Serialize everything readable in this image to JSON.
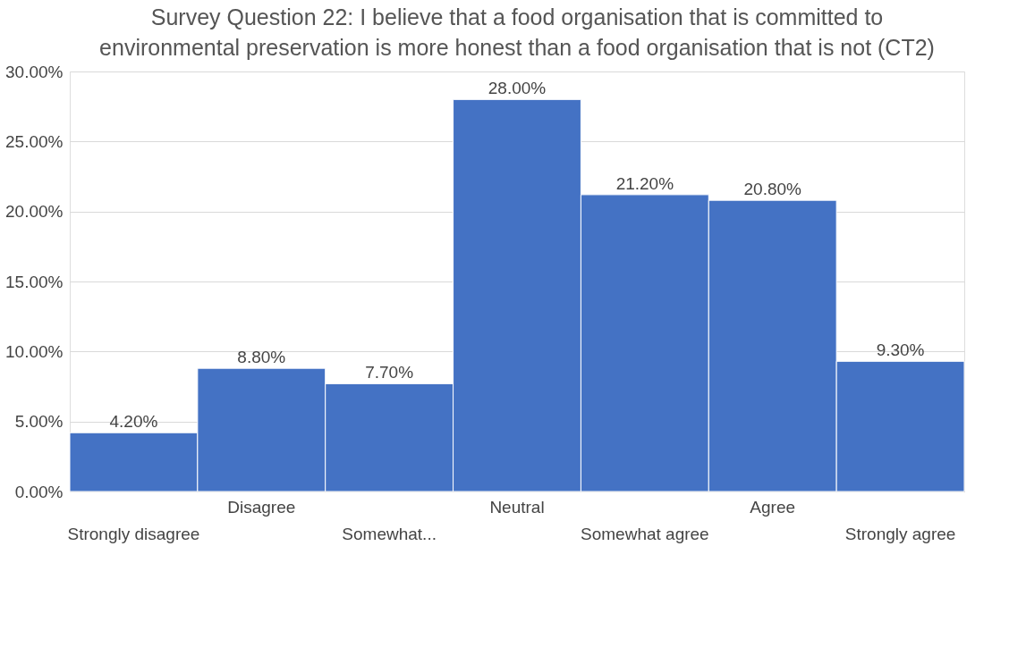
{
  "chart_data": {
    "type": "bar",
    "title": "Survey Question 22: I believe that a food organisation that is committed to environmental preservation is more honest than a food organisation that is not (CT2)",
    "categories": [
      "Strongly disagree",
      "Disagree",
      "Somewhat...",
      "Neutral",
      "Somewhat agree",
      "Agree",
      "Strongly agree"
    ],
    "values": [
      4.2,
      8.8,
      7.7,
      28.0,
      21.2,
      20.8,
      9.3
    ],
    "value_labels": [
      "4.20%",
      "8.80%",
      "7.70%",
      "28.00%",
      "21.20%",
      "20.80%",
      "9.30%"
    ],
    "color": "#4472c4",
    "ylim": [
      0,
      30
    ],
    "yticks": [
      {
        "value": 0,
        "label": "0.00%"
      },
      {
        "value": 5,
        "label": "5.00%"
      },
      {
        "value": 10,
        "label": "10.00%"
      },
      {
        "value": 15,
        "label": "15.00%"
      },
      {
        "value": 20,
        "label": "20.00%"
      },
      {
        "value": 25,
        "label": "25.00%"
      },
      {
        "value": 30,
        "label": "30.00%"
      }
    ],
    "grid": "y"
  }
}
